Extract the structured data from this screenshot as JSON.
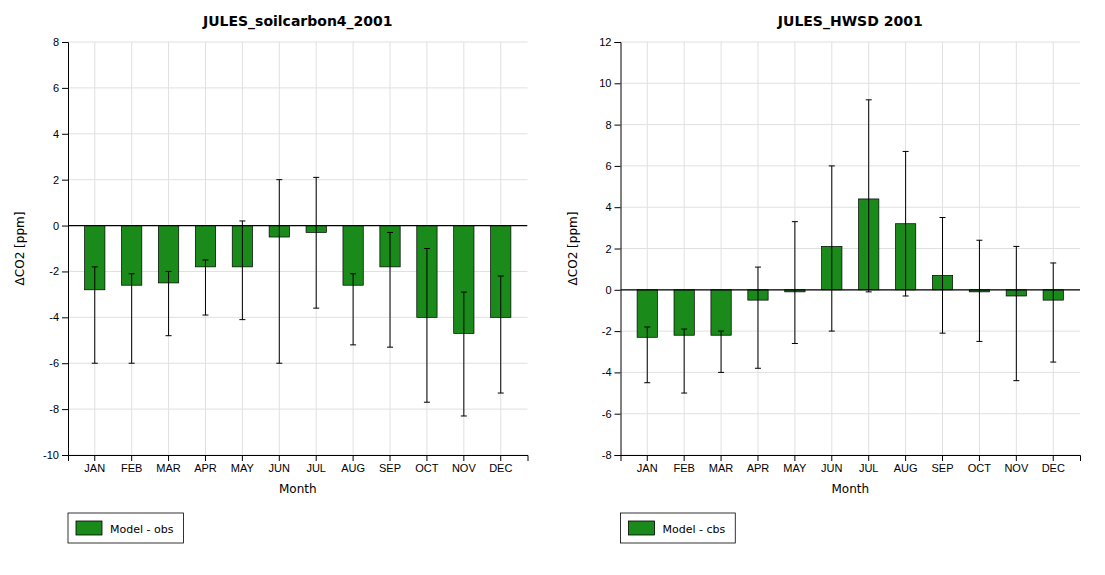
{
  "chart_data": [
    {
      "type": "bar",
      "title": "JULES_soilcarbon4_2001",
      "xlabel": "Month",
      "ylabel": "ΔCO2 [ppm]",
      "categories": [
        "JAN",
        "FEB",
        "MAR",
        "APR",
        "MAY",
        "JUN",
        "JUL",
        "AUG",
        "SEP",
        "OCT",
        "NOV",
        "DEC"
      ],
      "series": [
        {
          "name": "Model - obs",
          "color": "#1a8a1a",
          "values": [
            -2.8,
            -2.6,
            -2.5,
            -1.8,
            -1.8,
            -0.5,
            -0.3,
            -2.6,
            -1.8,
            -4.0,
            -4.7,
            -4.0
          ],
          "err_low": [
            3.2,
            3.4,
            2.3,
            2.1,
            2.3,
            5.5,
            3.3,
            2.6,
            3.5,
            3.7,
            3.6,
            3.3
          ],
          "err_high": [
            1.0,
            0.5,
            0.5,
            0.3,
            2.0,
            2.5,
            2.4,
            0.5,
            1.5,
            3.0,
            1.8,
            1.8
          ]
        }
      ],
      "ylim": [
        -10,
        8
      ],
      "yticks": [
        -10,
        -8,
        -6,
        -4,
        -2,
        0,
        2,
        4,
        6,
        8
      ],
      "grid": true,
      "legend": "bottom"
    },
    {
      "type": "bar",
      "title": "JULES_HWSD 2001",
      "xlabel": "Month",
      "ylabel": "ΔCO2 [ppm]",
      "categories": [
        "JAN",
        "FEB",
        "MAR",
        "APR",
        "MAY",
        "JUN",
        "JUL",
        "AUG",
        "SEP",
        "OCT",
        "NOV",
        "DEC"
      ],
      "series": [
        {
          "name": "Model - cbs",
          "color": "#1a8a1a",
          "values": [
            -2.3,
            -2.2,
            -2.2,
            -0.5,
            -0.1,
            2.1,
            4.4,
            3.2,
            0.7,
            -0.1,
            -0.3,
            -0.5
          ],
          "err_low": [
            2.2,
            2.8,
            1.8,
            3.3,
            2.5,
            4.1,
            4.5,
            3.5,
            2.8,
            2.4,
            4.1,
            3.0
          ],
          "err_high": [
            0.5,
            0.3,
            0.2,
            1.6,
            3.4,
            3.9,
            4.8,
            3.5,
            2.8,
            2.5,
            2.4,
            1.8
          ]
        }
      ],
      "ylim": [
        -8,
        12
      ],
      "yticks": [
        -8,
        -6,
        -4,
        -2,
        0,
        2,
        4,
        6,
        8,
        10,
        12
      ],
      "grid": true,
      "legend": "bottom"
    }
  ]
}
